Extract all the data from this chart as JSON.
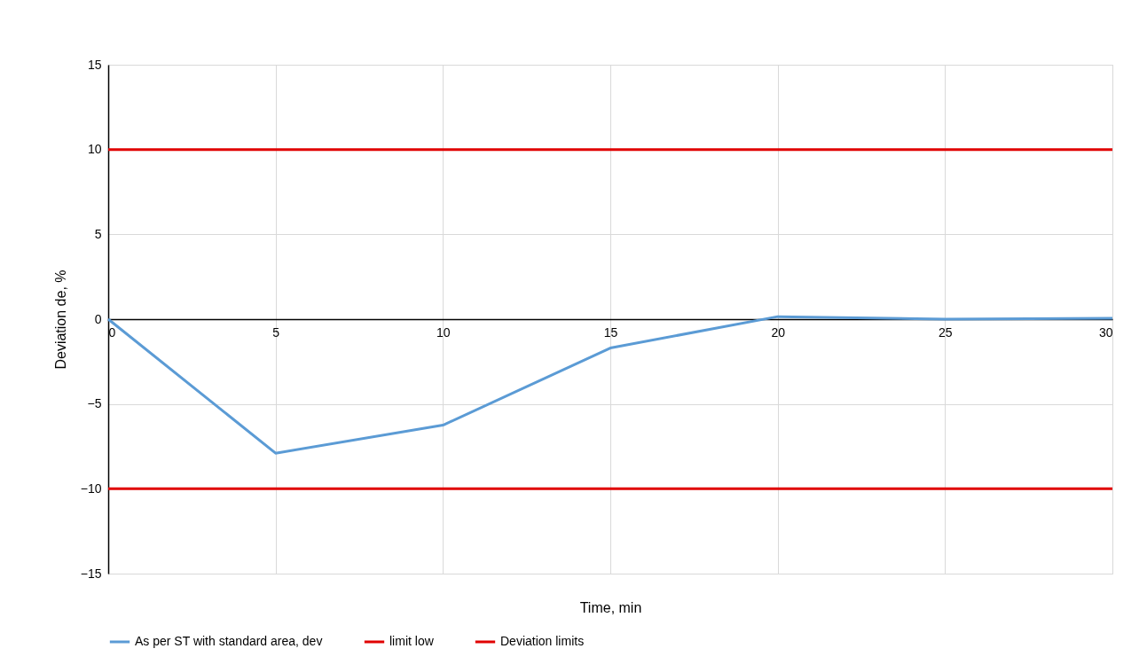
{
  "chart_data": {
    "type": "line",
    "xlabel": "Time, min",
    "ylabel": "Deviation de, %",
    "x": [
      0,
      5,
      10,
      15,
      20,
      25,
      30
    ],
    "series": [
      {
        "name": "As per ST with standard area, dev",
        "color": "#5b9bd5",
        "values": [
          0,
          -7.9,
          -6.25,
          -1.7,
          0.15,
          0,
          0.05
        ]
      },
      {
        "name": "limit low",
        "color": "#e00000",
        "values": [
          -10,
          -10,
          -10,
          -10,
          -10,
          -10,
          -10
        ]
      },
      {
        "name": "Deviation limits",
        "color": "#e00000",
        "values": [
          10,
          10,
          10,
          10,
          10,
          10,
          10
        ]
      }
    ],
    "xlim": [
      0,
      30
    ],
    "xticks": [
      0,
      5,
      10,
      15,
      20,
      25,
      30
    ],
    "ylim": [
      -15,
      15
    ],
    "yticks": [
      -15,
      -10,
      -5,
      0,
      5,
      10,
      15
    ],
    "grid": true,
    "legend": "bottom",
    "marker": "none",
    "line_style": "solid"
  }
}
